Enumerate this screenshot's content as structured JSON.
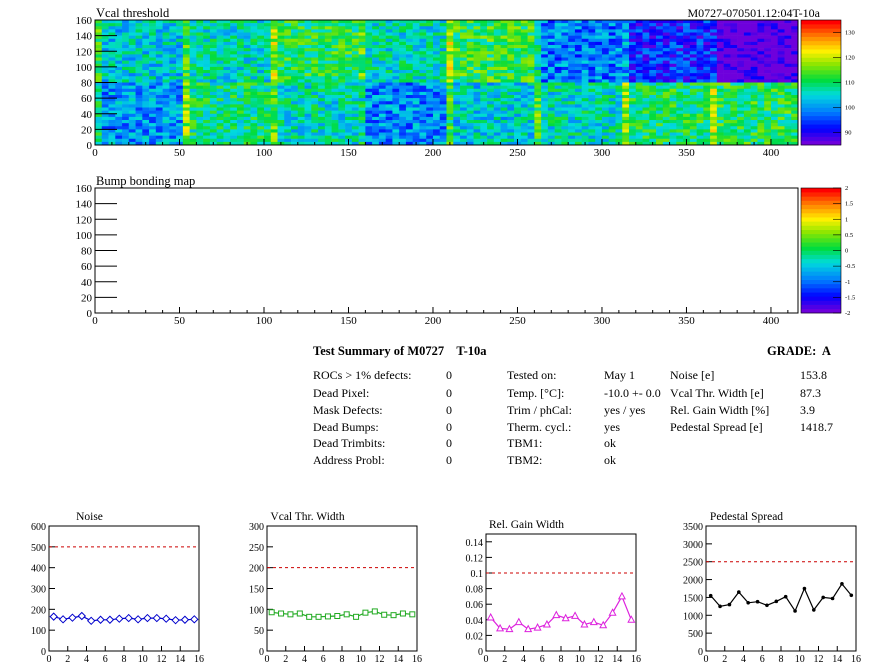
{
  "summary": {
    "title": "Test Summary of M0727    T-10a",
    "grade": "GRADE:  A",
    "defects": [
      {
        "label": "ROCs > 1% defects:",
        "value": "0"
      },
      {
        "label": "Dead Pixel:",
        "value": "0"
      },
      {
        "label": "Mask Defects:",
        "value": "0"
      },
      {
        "label": "Dead Bumps:",
        "value": "0"
      },
      {
        "label": "Dead Trimbits:",
        "value": "0"
      },
      {
        "label": "Address Probl:",
        "value": "0"
      }
    ],
    "conditions": [
      {
        "label": "Tested on:",
        "value": "May 1"
      },
      {
        "label": "Temp. [°C]:",
        "value": "-10.0 +- 0.0"
      },
      {
        "label": "Trim / phCal:",
        "value": "yes / yes"
      },
      {
        "label": "Therm. cycl.:",
        "value": "yes"
      },
      {
        "label": "TBM1:",
        "value": "ok"
      },
      {
        "label": "TBM2:",
        "value": "ok"
      }
    ],
    "results": [
      {
        "label": "Noise [e]",
        "value": "153.8"
      },
      {
        "label": "Vcal Thr. Width [e]",
        "value": "87.3"
      },
      {
        "label": "Rel. Gain Width [%]",
        "value": "3.9"
      },
      {
        "label": "Pedestal Spread [e]",
        "value": "1418.7"
      }
    ]
  },
  "chart_data": [
    {
      "type": "heatmap",
      "title": "Vcal threshold",
      "title_right": "M0727-070501.12:04T-10a",
      "xlim": [
        0,
        416
      ],
      "ylim": [
        0,
        160
      ],
      "xticks": [
        "0",
        "50",
        "100",
        "150",
        "200",
        "250",
        "300",
        "350",
        "400"
      ],
      "yticks": [
        "0",
        "20",
        "40",
        "60",
        "80",
        "100",
        "120",
        "140",
        "160"
      ],
      "colorbar": {
        "min": 85,
        "max": 135,
        "ticks": [
          "90",
          "100",
          "110",
          "120",
          "130"
        ]
      },
      "roc_means_top": [
        104,
        106,
        111,
        106,
        112,
        98,
        92,
        84,
        104
      ],
      "roc_means_bottom": [
        100,
        109,
        106,
        99,
        104,
        106,
        110,
        111,
        106
      ]
    },
    {
      "type": "heatmap",
      "title": "Bump bonding map",
      "xlim": [
        0,
        416
      ],
      "ylim": [
        0,
        160
      ],
      "xticks": [
        "0",
        "50",
        "100",
        "150",
        "200",
        "250",
        "300",
        "350",
        "400"
      ],
      "yticks": [
        "0",
        "20",
        "40",
        "60",
        "80",
        "100",
        "120",
        "140",
        "160"
      ],
      "colorbar": {
        "min": -2,
        "max": 2,
        "ticks": [
          "-2",
          "-1.5",
          "-1",
          "-0.5",
          "0",
          "0.5",
          "1",
          "1.5",
          "2"
        ]
      }
    },
    {
      "type": "line",
      "title": "Noise",
      "color": "#0000cc",
      "marker": "diamond",
      "xlim": [
        0,
        16
      ],
      "ylim": [
        0,
        600
      ],
      "ref": 500,
      "xticks": [
        "0",
        "2",
        "4",
        "6",
        "8",
        "10",
        "12",
        "14",
        "16"
      ],
      "yticks": [
        "0",
        "100",
        "200",
        "300",
        "400",
        "500",
        "600"
      ],
      "x": [
        0.5,
        1.5,
        2.5,
        3.5,
        4.5,
        5.5,
        6.5,
        7.5,
        8.5,
        9.5,
        10.5,
        11.5,
        12.5,
        13.5,
        14.5,
        15.5
      ],
      "y": [
        165,
        152,
        160,
        168,
        145,
        150,
        150,
        155,
        158,
        152,
        158,
        158,
        155,
        148,
        150,
        152
      ]
    },
    {
      "type": "line",
      "title": "Vcal Thr. Width",
      "color": "#22aa22",
      "marker": "square",
      "xlim": [
        0,
        16
      ],
      "ylim": [
        0,
        300
      ],
      "ref": 200,
      "xticks": [
        "0",
        "2",
        "4",
        "6",
        "8",
        "10",
        "12",
        "14",
        "16"
      ],
      "yticks": [
        "0",
        "50",
        "100",
        "150",
        "200",
        "250",
        "300"
      ],
      "x": [
        0.5,
        1.5,
        2.5,
        3.5,
        4.5,
        5.5,
        6.5,
        7.5,
        8.5,
        9.5,
        10.5,
        11.5,
        12.5,
        13.5,
        14.5,
        15.5
      ],
      "y": [
        93,
        90,
        88,
        90,
        82,
        82,
        83,
        84,
        88,
        82,
        92,
        95,
        87,
        86,
        90,
        88
      ]
    },
    {
      "type": "line",
      "title": "Rel. Gain Width",
      "color": "#dd22dd",
      "marker": "triangle",
      "xlim": [
        0,
        16
      ],
      "ylim": [
        0,
        0.15
      ],
      "ref": 0.1,
      "xticks": [
        "0",
        "2",
        "4",
        "6",
        "8",
        "10",
        "12",
        "14",
        "16"
      ],
      "yticks": [
        "0",
        "0.02",
        "0.04",
        "0.06",
        "0.08",
        "0.1",
        "0.12",
        "0.14"
      ],
      "x": [
        0.5,
        1.5,
        2.5,
        3.5,
        4.5,
        5.5,
        6.5,
        7.5,
        8.5,
        9.5,
        10.5,
        11.5,
        12.5,
        13.5,
        14.5,
        15.5
      ],
      "y": [
        0.043,
        0.029,
        0.028,
        0.037,
        0.028,
        0.03,
        0.034,
        0.046,
        0.042,
        0.045,
        0.034,
        0.037,
        0.033,
        0.049,
        0.07,
        0.04
      ]
    },
    {
      "type": "line",
      "title": "Pedestal Spread",
      "color": "#000000",
      "marker": "dot",
      "xlim": [
        0,
        16
      ],
      "ylim": [
        0,
        3500
      ],
      "ref": 2500,
      "xticks": [
        "0",
        "2",
        "4",
        "6",
        "8",
        "10",
        "12",
        "14",
        "16"
      ],
      "yticks": [
        "0",
        "500",
        "1000",
        "1500",
        "2000",
        "2500",
        "3000",
        "3500"
      ],
      "x": [
        0.5,
        1.5,
        2.5,
        3.5,
        4.5,
        5.5,
        6.5,
        7.5,
        8.5,
        9.5,
        10.5,
        11.5,
        12.5,
        13.5,
        14.5,
        15.5
      ],
      "y": [
        1550,
        1250,
        1300,
        1650,
        1350,
        1380,
        1280,
        1390,
        1520,
        1120,
        1750,
        1150,
        1500,
        1470,
        1880,
        1560
      ]
    }
  ]
}
